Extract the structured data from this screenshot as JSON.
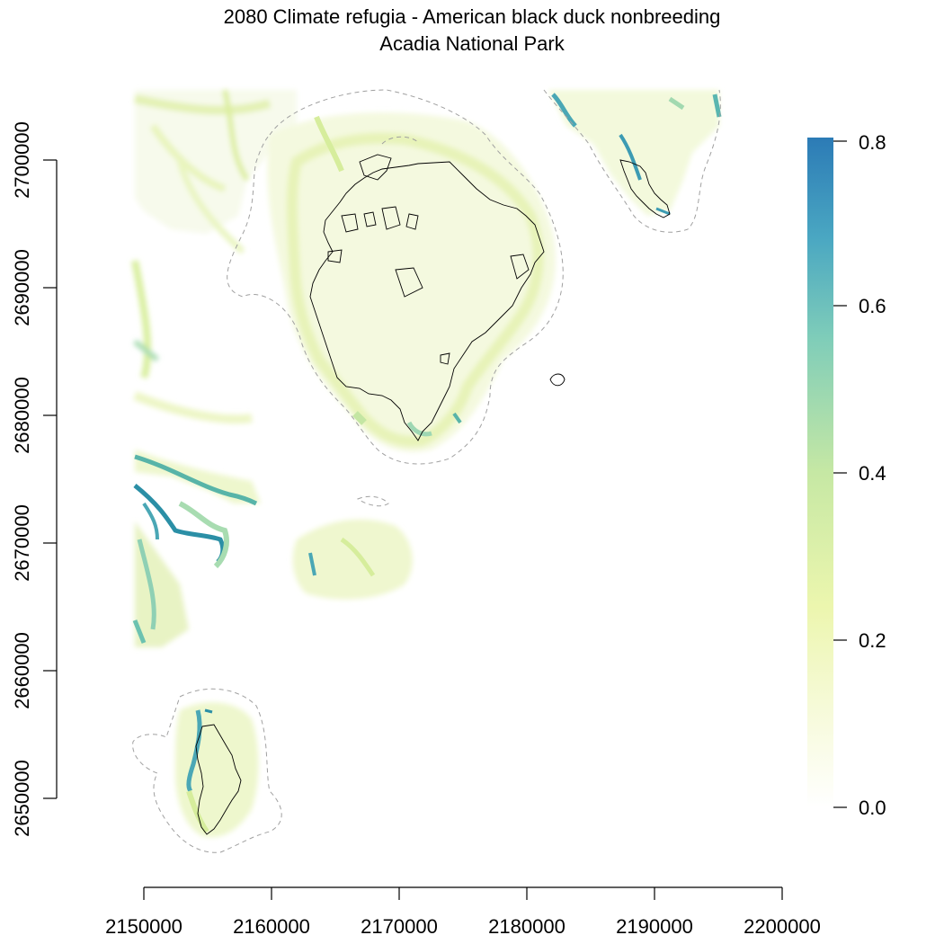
{
  "title": {
    "line1": "2080 Climate refugia - American black duck nonbreeding",
    "line2": "Acadia National Park"
  },
  "chart_data": {
    "type": "heatmap",
    "x_axis": {
      "range": [
        2150000,
        2200000
      ],
      "ticks": [
        "2150000",
        "2160000",
        "2170000",
        "2180000",
        "2190000",
        "2200000"
      ]
    },
    "y_axis": {
      "range": [
        2650000,
        2700000
      ],
      "ticks": [
        "2650000",
        "2660000",
        "2670000",
        "2680000",
        "2690000",
        "2700000"
      ]
    },
    "legend": {
      "placement": "right",
      "min": 0.0,
      "max": 0.8,
      "ticks": [
        "0.0",
        "0.2",
        "0.4",
        "0.6",
        "0.8"
      ],
      "colors": [
        "#ffffff",
        "#f4f9d4",
        "#e6f4a8",
        "#b8e2a0",
        "#7fcdb8",
        "#49a6c2",
        "#2c7bb6"
      ]
    },
    "colors": {
      "boundary": "#000000",
      "buffer": "#a0a0a0"
    }
  }
}
